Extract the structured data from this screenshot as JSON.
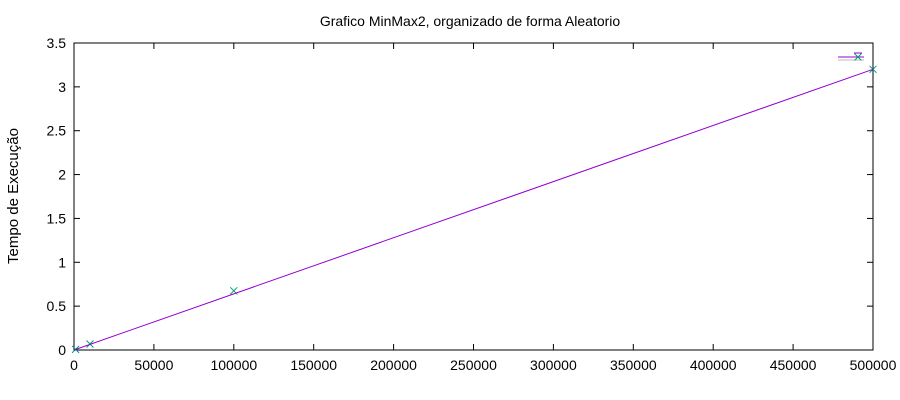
{
  "chart_data": {
    "type": "line",
    "title": "Grafico MinMax2, organizado de forma Aleatorio",
    "xlabel": "",
    "ylabel": "Tempo de Execução",
    "xlim": [
      0,
      500000
    ],
    "ylim": [
      0,
      3.5
    ],
    "xticks": [
      "0",
      "50000",
      "100000",
      "150000",
      "200000",
      "250000",
      "300000",
      "350000",
      "400000",
      "450000",
      "500000"
    ],
    "yticks": [
      "0",
      "0.5",
      "1",
      "1.5",
      "2",
      "2.5",
      "3",
      "3.5"
    ],
    "grid": false,
    "legend_position": "top-right",
    "series": [
      {
        "name": "",
        "type": "points",
        "marker": "x",
        "color": "#009e73",
        "x": [
          1000,
          10000,
          100000,
          500000
        ],
        "y": [
          0.007,
          0.068,
          0.675,
          3.2
        ]
      },
      {
        "name": "",
        "type": "line",
        "color": "#9400d3",
        "x": [
          0,
          500000
        ],
        "y": [
          0.0,
          3.2
        ]
      }
    ]
  }
}
